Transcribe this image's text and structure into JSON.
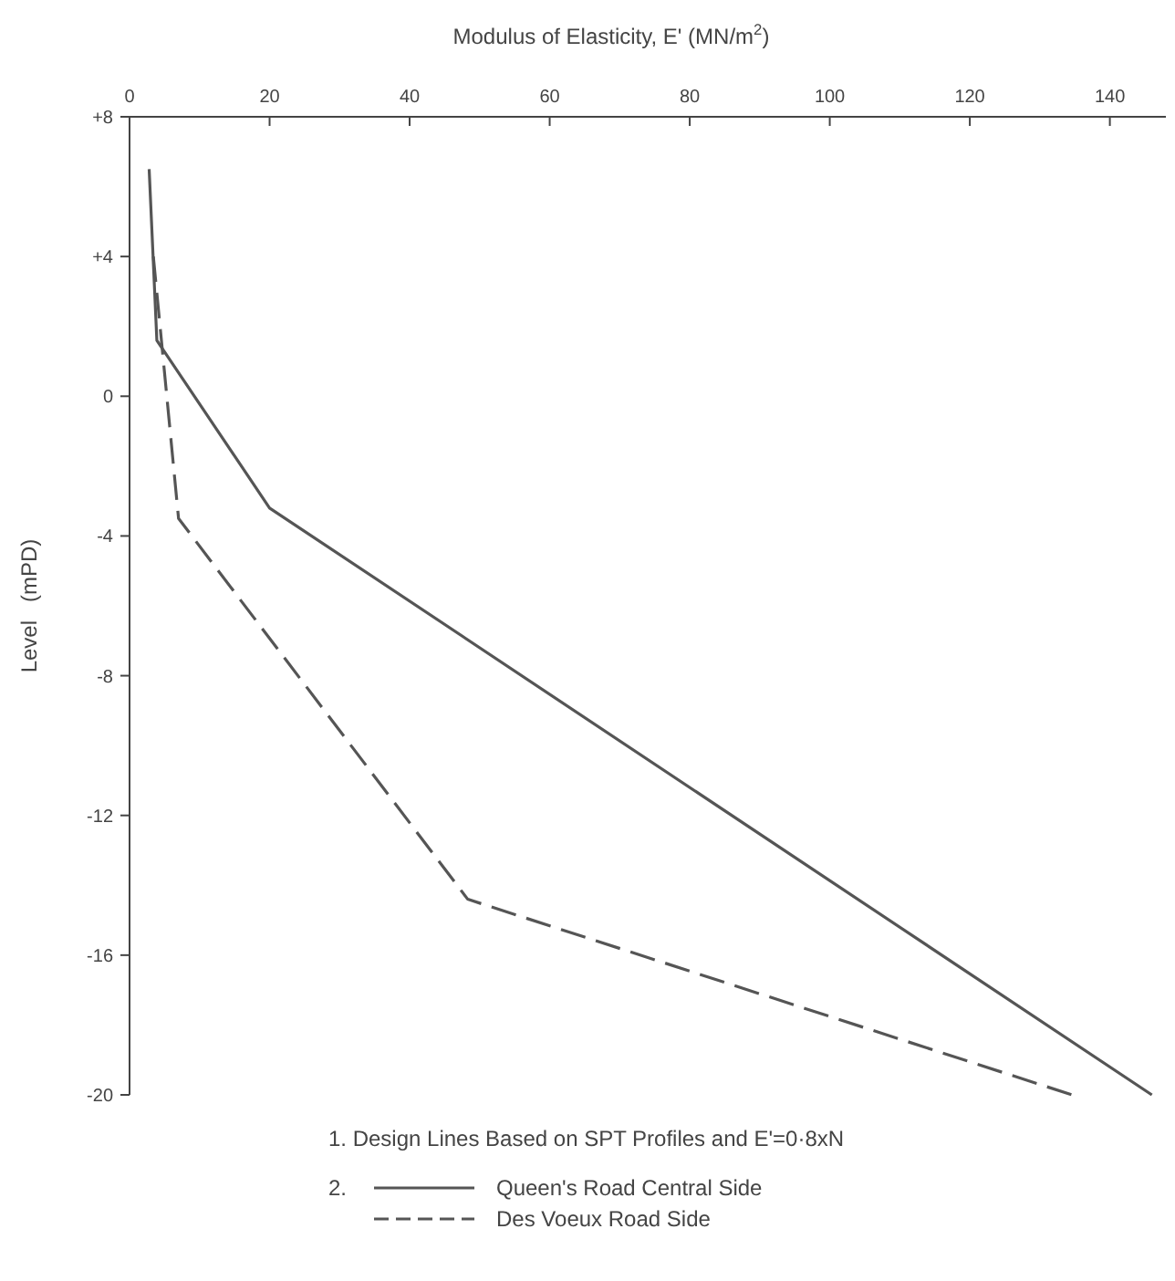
{
  "chart_data": {
    "type": "line",
    "xlabel": "Modulus of Elasticity, E' (MN/m$^{2}$)",
    "ylabel": "Level   (mPD)",
    "xlim": [
      0,
      148
    ],
    "xticks": [
      0,
      20,
      40,
      60,
      80,
      100,
      120,
      140
    ],
    "ylim": [
      -20,
      8
    ],
    "yticks": [
      {
        "value": 8,
        "label": "+8"
      },
      {
        "value": 4,
        "label": "+4"
      },
      0,
      -4,
      -8,
      -12,
      -16,
      -20
    ],
    "grid": false,
    "legend": "bottom",
    "marker": "none",
    "series": [
      {
        "name": "Queen's Road Central Side",
        "color": "#555555",
        "line_style": "solid",
        "x": [
          2.8,
          3.9,
          20,
          146
        ],
        "values": [
          6.5,
          1.6,
          -3.2,
          -20
        ]
      },
      {
        "name": "Des Voeux Road Side",
        "color": "#555555",
        "line_style": "dashed",
        "x": [
          3.4,
          7,
          48.3,
          134.6
        ],
        "values": [
          4,
          -3.5,
          -14.4,
          -20
        ]
      }
    ],
    "annotations": [
      "1. Design Lines Based on SPT Profiles and E'=0·8xN",
      "2."
    ]
  }
}
